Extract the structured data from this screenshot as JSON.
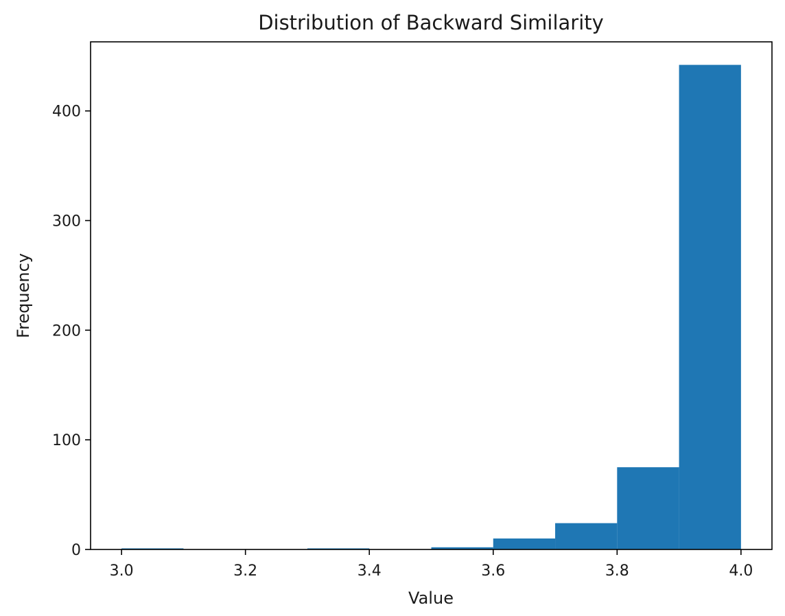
{
  "chart_data": {
    "type": "bar",
    "title": "Distribution of Backward Similarity",
    "xlabel": "Value",
    "ylabel": "Frequency",
    "bar_color": "#1f77b4",
    "xlim": [
      2.95,
      4.05
    ],
    "ylim": [
      0,
      463
    ],
    "xticks": [
      {
        "value": 3.0,
        "label": "3.0"
      },
      {
        "value": 3.2,
        "label": "3.2"
      },
      {
        "value": 3.4,
        "label": "3.4"
      },
      {
        "value": 3.6,
        "label": "3.6"
      },
      {
        "value": 3.8,
        "label": "3.8"
      },
      {
        "value": 4.0,
        "label": "4.0"
      }
    ],
    "yticks": [
      {
        "value": 0,
        "label": "0"
      },
      {
        "value": 100,
        "label": "100"
      },
      {
        "value": 200,
        "label": "200"
      },
      {
        "value": 300,
        "label": "300"
      },
      {
        "value": 400,
        "label": "400"
      }
    ],
    "bins": [
      {
        "start": 3.0,
        "end": 3.1,
        "count": 1
      },
      {
        "start": 3.1,
        "end": 3.2,
        "count": 0
      },
      {
        "start": 3.2,
        "end": 3.3,
        "count": 0
      },
      {
        "start": 3.3,
        "end": 3.4,
        "count": 1
      },
      {
        "start": 3.4,
        "end": 3.5,
        "count": 0
      },
      {
        "start": 3.5,
        "end": 3.6,
        "count": 2
      },
      {
        "start": 3.6,
        "end": 3.7,
        "count": 10
      },
      {
        "start": 3.7,
        "end": 3.8,
        "count": 24
      },
      {
        "start": 3.8,
        "end": 3.9,
        "count": 75
      },
      {
        "start": 3.9,
        "end": 4.0,
        "count": 442
      }
    ],
    "grid": false,
    "legend": "none"
  }
}
